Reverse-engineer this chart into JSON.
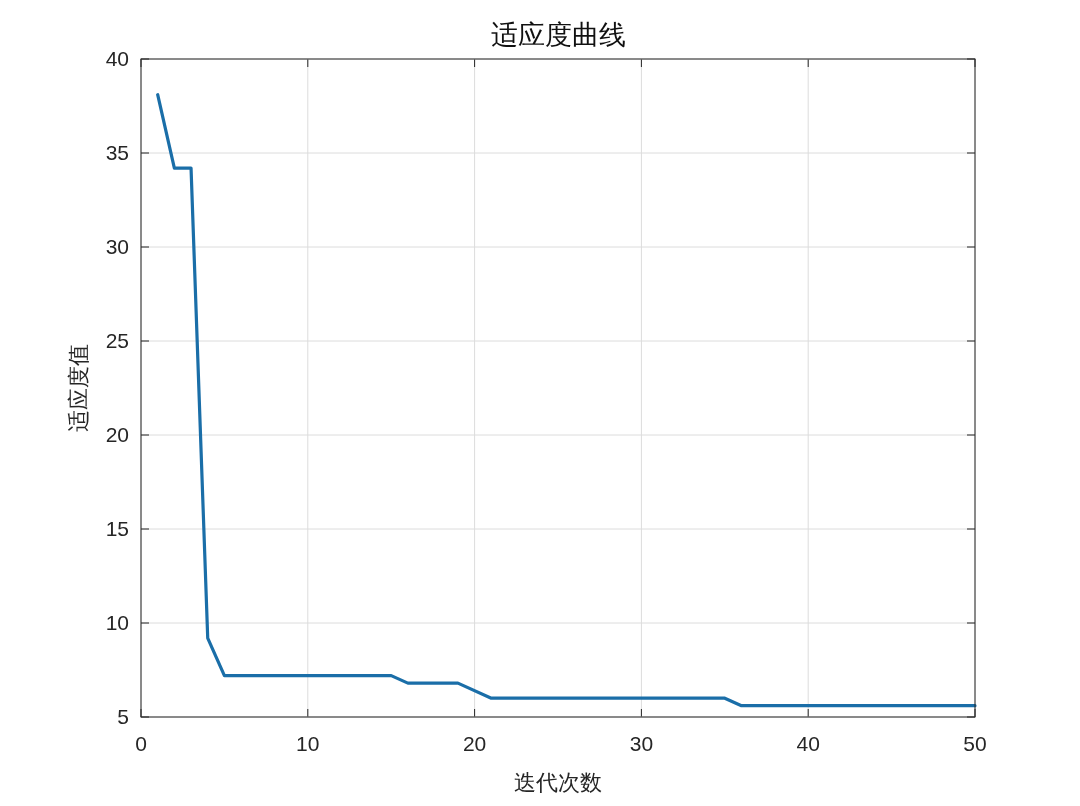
{
  "chart_data": {
    "type": "line",
    "title": "适应度曲线",
    "xlabel": "迭代次数",
    "ylabel": "适应度值",
    "grid": true,
    "xlim": [
      0,
      50
    ],
    "ylim": [
      5,
      40
    ],
    "xticks": [
      0,
      10,
      20,
      30,
      40,
      50
    ],
    "yticks": [
      5,
      10,
      15,
      20,
      25,
      30,
      35,
      40
    ],
    "series": [
      {
        "color": "#1a6ea8",
        "x": [
          1,
          2,
          3,
          4,
          5,
          15,
          16,
          19,
          21,
          35,
          36,
          50
        ],
        "values": [
          38.1,
          34.2,
          34.2,
          9.2,
          7.2,
          7.2,
          6.8,
          6.8,
          6.0,
          6.0,
          5.6,
          5.6
        ]
      }
    ]
  }
}
